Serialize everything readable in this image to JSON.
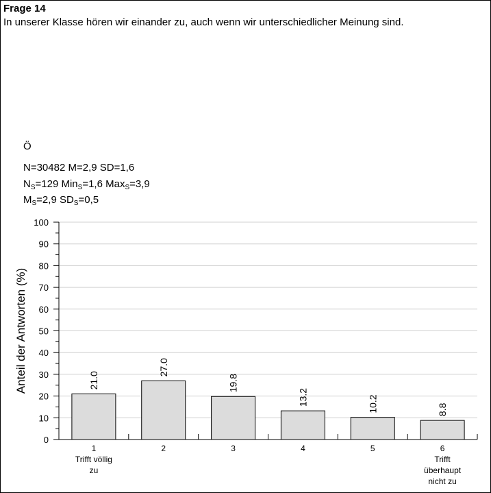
{
  "header": {
    "title": "Frage 14",
    "question": "In unserer Klasse hören wir einander zu, auch wenn wir unterschiedlicher Meinung sind."
  },
  "stats": {
    "group": "Ö",
    "line1": "N=30482 M=2,9 SD=1,6",
    "line2": {
      "n_label": "N",
      "n_sub": "S",
      "n_val": "=129 ",
      "min_label": "Min",
      "min_sub": "S",
      "min_val": "=1,6 ",
      "max_label": "Max",
      "max_sub": "S",
      "max_val": "=3,9"
    },
    "line3": {
      "m_label": "M",
      "m_sub": "S",
      "m_val": "=2,9 ",
      "sd_label": "SD",
      "sd_sub": "S",
      "sd_val": "=0,5"
    }
  },
  "chart_data": {
    "type": "bar",
    "categories": [
      "1",
      "2",
      "3",
      "4",
      "5",
      "6"
    ],
    "category_sublabels": [
      [
        "Trifft völlig",
        "zu"
      ],
      [],
      [],
      [],
      [],
      [
        "Trifft",
        "überhaupt",
        "nicht zu"
      ]
    ],
    "values": [
      21.0,
      27.0,
      19.8,
      13.2,
      10.2,
      8.8
    ],
    "value_labels": [
      "21.0",
      "27.0",
      "19.8",
      "13.2",
      "10.2",
      "8.8"
    ],
    "ylabel": "Anteil der Antworten (%)",
    "ylim": [
      0,
      100
    ],
    "yticks": [
      0,
      10,
      20,
      30,
      40,
      50,
      60,
      70,
      80,
      90,
      100
    ],
    "grid": true,
    "bar_color": "#dcdcdc",
    "grid_color": "#d0d0d0"
  }
}
